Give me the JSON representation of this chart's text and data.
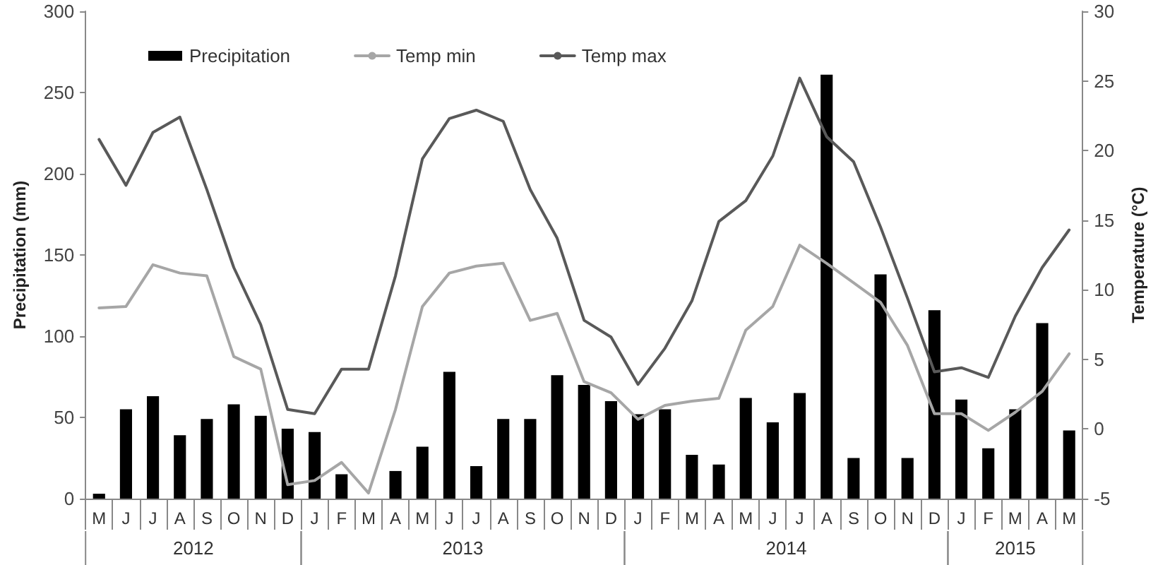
{
  "chart_data": {
    "type": "bar",
    "categories": [
      "M",
      "J",
      "J",
      "A",
      "S",
      "O",
      "N",
      "D",
      "J",
      "F",
      "M",
      "A",
      "M",
      "J",
      "J",
      "A",
      "S",
      "O",
      "N",
      "D",
      "J",
      "F",
      "M",
      "A",
      "M",
      "J",
      "J",
      "A",
      "S",
      "O",
      "N",
      "D",
      "J",
      "F",
      "M",
      "A",
      "M"
    ],
    "series": [
      {
        "name": "Precipitation",
        "color": "#000000",
        "values": [
          3,
          55,
          63,
          39,
          49,
          58,
          51,
          43,
          41,
          15,
          0,
          17,
          32,
          78,
          20,
          49,
          49,
          76,
          70,
          60,
          52,
          55,
          27,
          21,
          62,
          47,
          65,
          261,
          25,
          138,
          25,
          116,
          61,
          31,
          55,
          108,
          42
        ]
      },
      {
        "name": "Temp min",
        "type": "line",
        "axis": "y2",
        "color": "#a6a6a6",
        "values": [
          8.7,
          8.8,
          11.8,
          11.2,
          11.0,
          5.2,
          4.3,
          -4.0,
          -3.7,
          -2.4,
          -4.6,
          1.4,
          8.8,
          11.2,
          11.7,
          11.9,
          7.8,
          8.3,
          3.4,
          2.6,
          0.7,
          1.7,
          2.0,
          2.2,
          7.1,
          8.8,
          13.2,
          11.9,
          10.5,
          9.1,
          6.0,
          1.1,
          1.1,
          -0.1,
          1.2,
          2.7,
          5.4
        ]
      },
      {
        "name": "Temp max",
        "type": "line",
        "axis": "y2",
        "color": "#595959",
        "values": [
          20.8,
          17.5,
          21.3,
          22.4,
          17.2,
          11.6,
          7.5,
          1.4,
          1.1,
          4.3,
          4.3,
          11.0,
          19.4,
          22.3,
          22.9,
          22.1,
          17.2,
          13.7,
          7.8,
          6.6,
          3.2,
          5.8,
          9.2,
          14.9,
          16.4,
          19.6,
          25.2,
          21.0,
          19.2,
          14.5,
          9.4,
          4.1,
          4.4,
          3.7,
          8.1,
          11.6,
          14.3
        ]
      }
    ],
    "ylabel": "Precipitation (mm)",
    "y2label": "Temperature (°C)",
    "ylim": [
      0,
      300
    ],
    "yticks": [
      0,
      50,
      100,
      150,
      200,
      250,
      300
    ],
    "y2lim": [
      -5,
      30
    ],
    "y2ticks": [
      -5,
      0,
      5,
      10,
      15,
      20,
      25,
      30
    ],
    "annotations": [
      "2012",
      "2013",
      "2014",
      "2015"
    ],
    "legend": "top left",
    "grid": false,
    "marker": "none",
    "line_style": "solid"
  }
}
